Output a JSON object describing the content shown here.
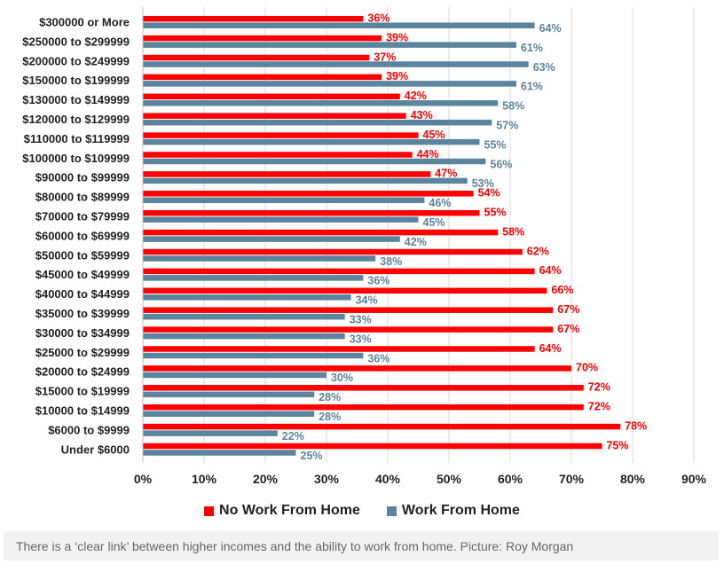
{
  "chart_data": {
    "type": "bar",
    "orientation": "horizontal",
    "categories": [
      "$300000 or More",
      "$250000 to $299999",
      "$200000 to $249999",
      "$150000 to $199999",
      "$130000 to $149999",
      "$120000 to $129999",
      "$110000 to $119999",
      "$100000 to $109999",
      "$90000 to $99999",
      "$80000 to $89999",
      "$70000 to $79999",
      "$60000 to $69999",
      "$50000 to $59999",
      "$45000 to $49999",
      "$40000 to $44999",
      "$35000 to $39999",
      "$30000 to $34999",
      "$25000 to $29999",
      "$20000 to $24999",
      "$15000 to $19999",
      "$10000 to $14999",
      "$6000 to $9999",
      "Under $6000"
    ],
    "series": [
      {
        "name": "No Work From Home",
        "color": "#ff0000",
        "values": [
          36,
          39,
          37,
          39,
          42,
          43,
          45,
          44,
          47,
          54,
          55,
          58,
          62,
          64,
          66,
          67,
          67,
          64,
          70,
          72,
          72,
          78,
          75
        ]
      },
      {
        "name": "Work From Home",
        "color": "#5b849e",
        "values": [
          64,
          61,
          63,
          61,
          58,
          57,
          55,
          56,
          53,
          46,
          45,
          42,
          38,
          36,
          34,
          33,
          33,
          36,
          30,
          28,
          28,
          22,
          25
        ]
      }
    ],
    "value_suffix": "%",
    "xlim": [
      0,
      90
    ],
    "x_ticks": [
      "0%",
      "10%",
      "20%",
      "30%",
      "40%",
      "50%",
      "60%",
      "70%",
      "80%",
      "90%"
    ],
    "grid": true,
    "legend_position": "bottom",
    "title": "",
    "xlabel": "",
    "ylabel": ""
  },
  "legend": {
    "no_wfh_label": "No Work From Home",
    "wfh_label": "Work From Home"
  },
  "caption": "There is a ‘clear link’ between higher incomes and the ability to work from home. Picture: Roy Morgan"
}
